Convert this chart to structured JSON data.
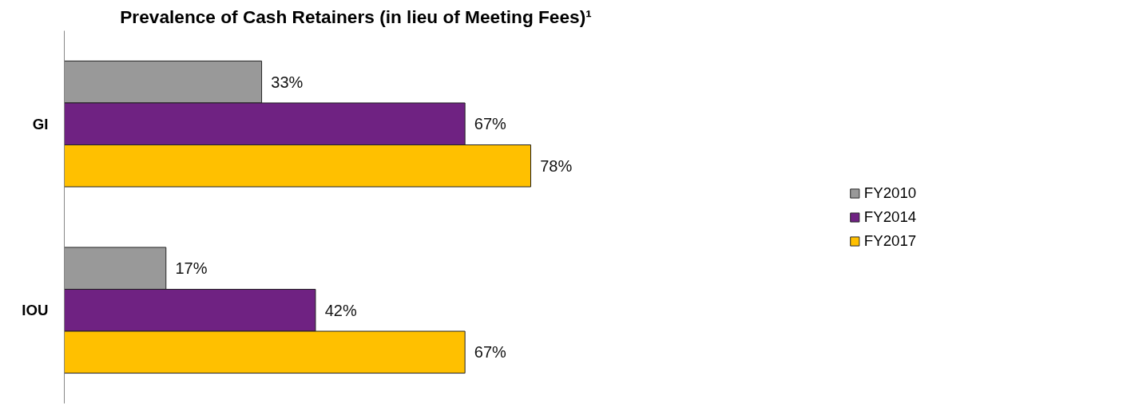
{
  "chart_data": {
    "type": "bar",
    "orientation": "horizontal",
    "title": "Prevalence of Cash Retainers (in lieu of Meeting Fees)¹",
    "categories": [
      "GI",
      "IOU"
    ],
    "series": [
      {
        "name": "FY2010",
        "color": "#999999",
        "values": [
          33,
          17
        ],
        "value_labels": [
          "33%",
          "17%"
        ]
      },
      {
        "name": "FY2014",
        "color": "#6f2282",
        "values": [
          67,
          42
        ],
        "value_labels": [
          "67%",
          "42%"
        ]
      },
      {
        "name": "FY2017",
        "color": "#ffc000",
        "values": [
          78,
          67
        ],
        "value_labels": [
          "78%",
          "67%"
        ]
      }
    ],
    "legend": "right",
    "grid": false
  }
}
